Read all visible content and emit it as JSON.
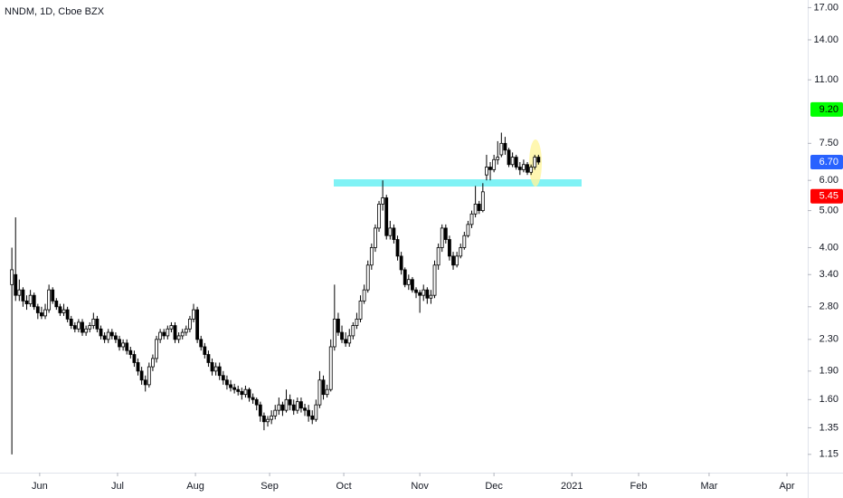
{
  "chart_data": {
    "type": "candlestick",
    "title": "NNDM, 1D, Cboe BZX",
    "log_scale": true,
    "up_color": "#ffffff",
    "down_color": "#000000",
    "border_color": "#000000",
    "ylim": [
      1.03,
      17.8
    ],
    "yticks": [
      {
        "value": 17,
        "label": "17.00"
      },
      {
        "value": 14,
        "label": "14.00"
      },
      {
        "value": 11,
        "label": "11.00"
      },
      {
        "value": 7.5,
        "label": "7.50"
      },
      {
        "value": 6,
        "label": "6.00"
      },
      {
        "value": 5,
        "label": "5.00"
      },
      {
        "value": 4,
        "label": "4.00"
      },
      {
        "value": 3.4,
        "label": "3.40"
      },
      {
        "value": 2.8,
        "label": "2.80"
      },
      {
        "value": 2.3,
        "label": "2.30"
      },
      {
        "value": 1.9,
        "label": "1.90"
      },
      {
        "value": 1.6,
        "label": "1.60"
      },
      {
        "value": 1.35,
        "label": "1.35"
      },
      {
        "value": 1.15,
        "label": "1.15"
      }
    ],
    "price_labels": [
      {
        "value": 9.2,
        "label": "9.20",
        "color": "#00ff00",
        "text_color": "#000000"
      },
      {
        "value": 6.7,
        "label": "6.70",
        "color": "#2962ff",
        "text_color": "#ffffff"
      },
      {
        "value": 5.45,
        "label": "5.45",
        "color": "#ff0000",
        "text_color": "#ffffff"
      }
    ],
    "xlim": [
      -3.2,
      214.6
    ],
    "xticks": [
      {
        "value": 7.5,
        "label": "Jun"
      },
      {
        "value": 28.5,
        "label": "Jul"
      },
      {
        "value": 49.5,
        "label": "Aug"
      },
      {
        "value": 69.5,
        "label": "Sep"
      },
      {
        "value": 89.5,
        "label": "Oct"
      },
      {
        "value": 110,
        "label": "Nov"
      },
      {
        "value": 130,
        "label": "Dec"
      },
      {
        "value": 151,
        "label": "2021"
      },
      {
        "value": 169,
        "label": "Feb"
      },
      {
        "value": 188,
        "label": "Mar"
      },
      {
        "value": 209,
        "label": "Apr"
      }
    ],
    "ohlc": [
      [
        3.2,
        4.0,
        1.15,
        3.5
      ],
      [
        3.4,
        4.8,
        2.9,
        3.0
      ],
      [
        3.0,
        3.3,
        2.9,
        3.1
      ],
      [
        3.1,
        3.15,
        2.8,
        2.9
      ],
      [
        2.9,
        3.0,
        2.75,
        2.85
      ],
      [
        2.85,
        3.1,
        2.8,
        3.0
      ],
      [
        3.0,
        3.05,
        2.75,
        2.8
      ],
      [
        2.8,
        2.85,
        2.6,
        2.7
      ],
      [
        2.7,
        2.8,
        2.6,
        2.65
      ],
      [
        2.65,
        2.85,
        2.6,
        2.75
      ],
      [
        2.75,
        3.2,
        2.7,
        3.1
      ],
      [
        3.1,
        3.15,
        2.85,
        2.9
      ],
      [
        2.9,
        2.95,
        2.75,
        2.8
      ],
      [
        2.8,
        2.85,
        2.65,
        2.7
      ],
      [
        2.7,
        2.85,
        2.65,
        2.75
      ],
      [
        2.75,
        2.8,
        2.55,
        2.6
      ],
      [
        2.6,
        2.65,
        2.45,
        2.5
      ],
      [
        2.5,
        2.55,
        2.4,
        2.45
      ],
      [
        2.45,
        2.6,
        2.4,
        2.55
      ],
      [
        2.55,
        2.6,
        2.35,
        2.4
      ],
      [
        2.4,
        2.5,
        2.35,
        2.45
      ],
      [
        2.45,
        2.55,
        2.4,
        2.5
      ],
      [
        2.5,
        2.7,
        2.45,
        2.6
      ],
      [
        2.6,
        2.65,
        2.4,
        2.45
      ],
      [
        2.45,
        2.5,
        2.3,
        2.35
      ],
      [
        2.35,
        2.4,
        2.25,
        2.3
      ],
      [
        2.3,
        2.45,
        2.25,
        2.4
      ],
      [
        2.4,
        2.45,
        2.3,
        2.35
      ],
      [
        2.35,
        2.4,
        2.25,
        2.3
      ],
      [
        2.3,
        2.35,
        2.15,
        2.2
      ],
      [
        2.2,
        2.3,
        2.15,
        2.25
      ],
      [
        2.25,
        2.3,
        2.1,
        2.15
      ],
      [
        2.15,
        2.2,
        2.05,
        2.1
      ],
      [
        2.1,
        2.15,
        1.95,
        2.0
      ],
      [
        2.0,
        2.05,
        1.85,
        1.9
      ],
      [
        1.9,
        1.95,
        1.75,
        1.8
      ],
      [
        1.8,
        1.85,
        1.68,
        1.75
      ],
      [
        1.75,
        2.0,
        1.72,
        1.95
      ],
      [
        1.95,
        2.1,
        1.9,
        2.05
      ],
      [
        2.05,
        2.35,
        2.0,
        2.3
      ],
      [
        2.3,
        2.45,
        2.25,
        2.4
      ],
      [
        2.4,
        2.45,
        2.3,
        2.35
      ],
      [
        2.35,
        2.5,
        2.3,
        2.45
      ],
      [
        2.45,
        2.55,
        2.4,
        2.5
      ],
      [
        2.5,
        2.55,
        2.25,
        2.3
      ],
      [
        2.3,
        2.4,
        2.25,
        2.35
      ],
      [
        2.35,
        2.45,
        2.3,
        2.4
      ],
      [
        2.4,
        2.5,
        2.35,
        2.45
      ],
      [
        2.45,
        2.65,
        2.4,
        2.6
      ],
      [
        2.6,
        2.85,
        2.55,
        2.75
      ],
      [
        2.75,
        2.8,
        2.25,
        2.3
      ],
      [
        2.3,
        2.35,
        2.15,
        2.2
      ],
      [
        2.2,
        2.25,
        2.05,
        2.1
      ],
      [
        2.1,
        2.15,
        1.95,
        2.0
      ],
      [
        2.0,
        2.05,
        1.85,
        1.9
      ],
      [
        1.9,
        2.0,
        1.85,
        1.95
      ],
      [
        1.95,
        2.0,
        1.8,
        1.85
      ],
      [
        1.85,
        1.9,
        1.75,
        1.8
      ],
      [
        1.8,
        1.85,
        1.7,
        1.75
      ],
      [
        1.75,
        1.8,
        1.68,
        1.72
      ],
      [
        1.72,
        1.76,
        1.66,
        1.7
      ],
      [
        1.7,
        1.74,
        1.64,
        1.68
      ],
      [
        1.68,
        1.72,
        1.6,
        1.65
      ],
      [
        1.65,
        1.74,
        1.62,
        1.7
      ],
      [
        1.7,
        1.72,
        1.58,
        1.62
      ],
      [
        1.62,
        1.66,
        1.56,
        1.6
      ],
      [
        1.6,
        1.62,
        1.5,
        1.55
      ],
      [
        1.55,
        1.58,
        1.4,
        1.45
      ],
      [
        1.45,
        1.48,
        1.33,
        1.4
      ],
      [
        1.4,
        1.45,
        1.36,
        1.42
      ],
      [
        1.42,
        1.5,
        1.38,
        1.45
      ],
      [
        1.45,
        1.55,
        1.42,
        1.5
      ],
      [
        1.5,
        1.62,
        1.46,
        1.55
      ],
      [
        1.55,
        1.58,
        1.45,
        1.5
      ],
      [
        1.5,
        1.7,
        1.48,
        1.6
      ],
      [
        1.6,
        1.65,
        1.5,
        1.55
      ],
      [
        1.55,
        1.6,
        1.46,
        1.5
      ],
      [
        1.5,
        1.62,
        1.47,
        1.58
      ],
      [
        1.58,
        1.62,
        1.48,
        1.52
      ],
      [
        1.52,
        1.56,
        1.45,
        1.5
      ],
      [
        1.5,
        1.55,
        1.4,
        1.45
      ],
      [
        1.45,
        1.5,
        1.38,
        1.42
      ],
      [
        1.42,
        1.6,
        1.4,
        1.55
      ],
      [
        1.55,
        1.9,
        1.52,
        1.8
      ],
      [
        1.8,
        1.85,
        1.6,
        1.65
      ],
      [
        1.65,
        1.75,
        1.62,
        1.7
      ],
      [
        1.7,
        2.3,
        1.68,
        2.2
      ],
      [
        2.2,
        3.2,
        2.15,
        2.6
      ],
      [
        2.6,
        2.7,
        2.35,
        2.4
      ],
      [
        2.4,
        2.5,
        2.25,
        2.3
      ],
      [
        2.3,
        2.4,
        2.2,
        2.25
      ],
      [
        2.25,
        2.45,
        2.2,
        2.35
      ],
      [
        2.35,
        2.55,
        2.3,
        2.5
      ],
      [
        2.5,
        2.7,
        2.45,
        2.6
      ],
      [
        2.6,
        3.0,
        2.55,
        2.9
      ],
      [
        2.9,
        3.2,
        2.85,
        3.1
      ],
      [
        3.1,
        3.7,
        3.05,
        3.6
      ],
      [
        3.6,
        4.1,
        3.5,
        4.0
      ],
      [
        4.0,
        4.6,
        3.9,
        4.5
      ],
      [
        4.5,
        5.3,
        4.4,
        5.2
      ],
      [
        5.2,
        6.0,
        5.0,
        5.4
      ],
      [
        5.4,
        5.5,
        4.2,
        4.3
      ],
      [
        4.3,
        4.7,
        4.2,
        4.5
      ],
      [
        4.5,
        4.6,
        4.1,
        4.2
      ],
      [
        4.2,
        4.3,
        3.7,
        3.8
      ],
      [
        3.8,
        3.9,
        3.4,
        3.5
      ],
      [
        3.5,
        3.55,
        3.15,
        3.2
      ],
      [
        3.2,
        3.4,
        3.1,
        3.3
      ],
      [
        3.3,
        3.35,
        3.05,
        3.1
      ],
      [
        3.1,
        3.15,
        2.95,
        3.05
      ],
      [
        3.05,
        3.1,
        2.7,
        3.0
      ],
      [
        3.0,
        3.2,
        2.9,
        3.1
      ],
      [
        3.1,
        3.15,
        2.85,
        2.95
      ],
      [
        2.95,
        3.1,
        2.85,
        3.0
      ],
      [
        3.0,
        3.7,
        2.95,
        3.6
      ],
      [
        3.6,
        4.1,
        3.5,
        4.0
      ],
      [
        4.0,
        4.6,
        3.9,
        4.5
      ],
      [
        4.5,
        4.6,
        4.1,
        4.2
      ],
      [
        4.2,
        4.3,
        3.7,
        3.8
      ],
      [
        3.8,
        3.9,
        3.5,
        3.6
      ],
      [
        3.6,
        3.9,
        3.55,
        3.8
      ],
      [
        3.8,
        4.1,
        3.75,
        4.0
      ],
      [
        4.0,
        4.4,
        3.95,
        4.3
      ],
      [
        4.3,
        4.7,
        4.25,
        4.6
      ],
      [
        4.6,
        5.0,
        4.5,
        4.9
      ],
      [
        4.9,
        5.8,
        4.8,
        5.2
      ],
      [
        5.2,
        5.3,
        4.9,
        5.0
      ],
      [
        5.0,
        5.9,
        4.95,
        5.6
      ],
      [
        6.2,
        7.0,
        6.0,
        6.5
      ],
      [
        6.5,
        6.7,
        6.0,
        6.4
      ],
      [
        6.4,
        7.0,
        6.3,
        6.8
      ],
      [
        6.8,
        7.6,
        6.6,
        6.9
      ],
      [
        7.0,
        8.0,
        6.9,
        7.5
      ],
      [
        7.5,
        7.8,
        7.0,
        7.2
      ],
      [
        7.2,
        7.3,
        6.5,
        6.6
      ],
      [
        6.6,
        7.1,
        6.5,
        6.9
      ],
      [
        6.9,
        7.0,
        6.4,
        6.5
      ],
      [
        6.5,
        6.7,
        6.2,
        6.4
      ],
      [
        6.4,
        6.8,
        6.3,
        6.6
      ],
      [
        6.6,
        6.7,
        6.2,
        6.3
      ],
      [
        6.3,
        6.6,
        6.2,
        6.5
      ],
      [
        6.5,
        7.0,
        6.4,
        6.9
      ],
      [
        6.9,
        7.0,
        6.6,
        6.7
      ]
    ]
  }
}
